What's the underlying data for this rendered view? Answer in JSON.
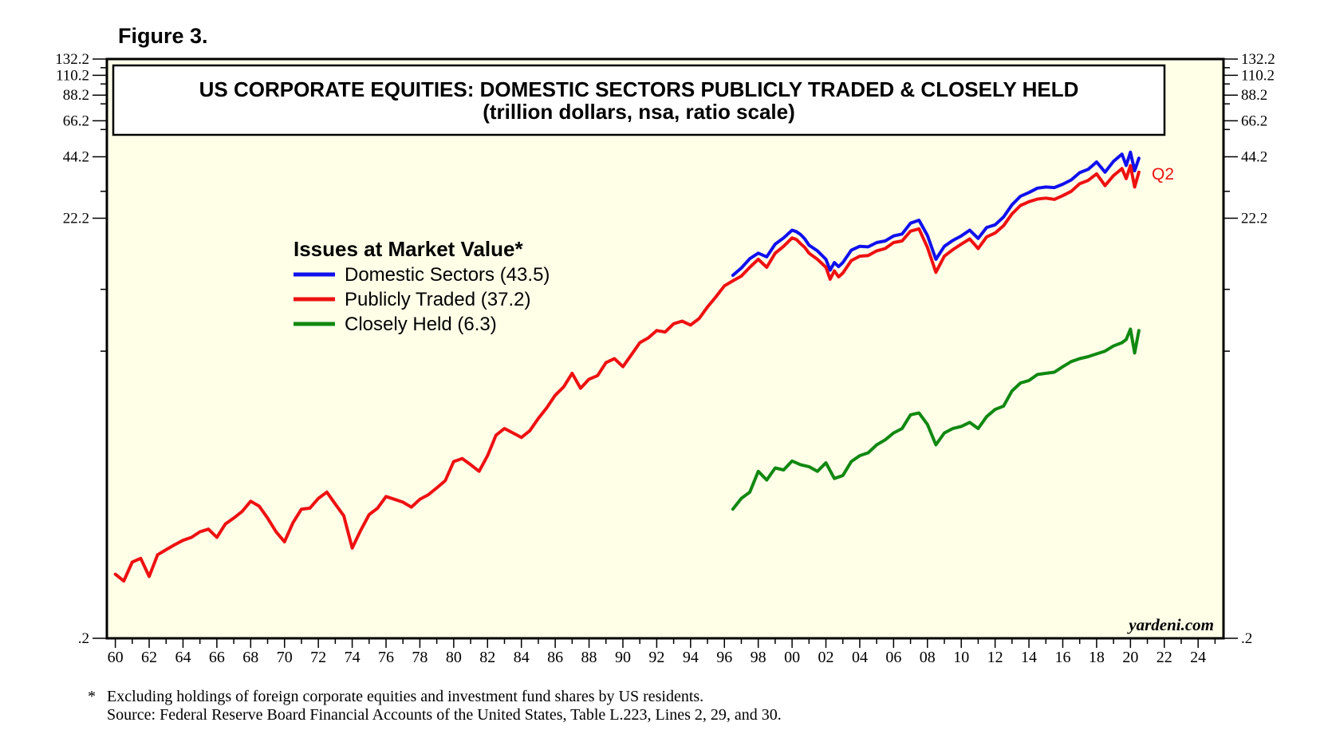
{
  "figure_label": "Figure 3.",
  "footnote": {
    "marker": "*",
    "line1": "Excluding holdings of foreign corporate equities and investment fund shares by US residents.",
    "line2": "Source: Federal Reserve Board Financial Accounts of the United States, Table L.223, Lines 2, 29, and 30."
  },
  "chart_data": {
    "type": "line",
    "title": "US CORPORATE EQUITIES: DOMESTIC SECTORS PUBLICLY TRADED & CLOSELY HELD",
    "subtitle": "(trillion dollars, nsa, ratio scale)",
    "y_scale": "log",
    "ylim": [
      0.2,
      132.2
    ],
    "y_ticks": [
      ".2",
      "22.2",
      "44.2",
      "66.2",
      "88.2",
      "110.2",
      "132.2"
    ],
    "y_tick_values": [
      0.2,
      22.2,
      44.2,
      66.2,
      88.2,
      110.2,
      132.2
    ],
    "xlim": [
      1960,
      2025
    ],
    "x_tick_labels": [
      "60",
      "62",
      "64",
      "66",
      "68",
      "70",
      "72",
      "74",
      "76",
      "78",
      "80",
      "82",
      "84",
      "86",
      "88",
      "90",
      "92",
      "94",
      "96",
      "98",
      "00",
      "02",
      "04",
      "06",
      "08",
      "10",
      "12",
      "14",
      "16",
      "18",
      "20",
      "22",
      "24"
    ],
    "grid": false,
    "background": "#ffffe8",
    "legend": {
      "title": "Issues at Market Value*",
      "placement": "upper-left"
    },
    "end_label": "Q2",
    "source": "yardeni.com",
    "series": [
      {
        "name": "Domestic Sectors (43.5)",
        "color": "#1010ee",
        "x": [
          1996.5,
          1997,
          1997.5,
          1998,
          1998.5,
          1999,
          1999.5,
          2000,
          2000.25,
          2000.5,
          2000.75,
          2001,
          2001.5,
          2002,
          2002.25,
          2002.5,
          2002.75,
          2003,
          2003.5,
          2004,
          2004.5,
          2005,
          2005.5,
          2006,
          2006.5,
          2007,
          2007.5,
          2008,
          2008.5,
          2009,
          2009.5,
          2010,
          2010.5,
          2011,
          2011.5,
          2012,
          2012.5,
          2013,
          2013.5,
          2014,
          2014.5,
          2015,
          2015.5,
          2016,
          2016.5,
          2017,
          2017.5,
          2018,
          2018.5,
          2019,
          2019.5,
          2019.75,
          2020,
          2020.25,
          2020.5
        ],
        "values": [
          11.7,
          12.7,
          14.1,
          15.0,
          14.4,
          16.6,
          17.8,
          19.4,
          19.1,
          18.5,
          17.6,
          16.4,
          15.4,
          14.0,
          12.4,
          13.5,
          12.9,
          13.5,
          15.5,
          16.2,
          16.1,
          16.9,
          17.2,
          18.2,
          18.6,
          21.0,
          21.7,
          18.3,
          14.0,
          16.2,
          17.3,
          18.2,
          19.4,
          17.7,
          20.0,
          20.6,
          22.5,
          25.8,
          28.4,
          29.6,
          31.1,
          31.5,
          31.3,
          32.5,
          34.1,
          37.0,
          38.4,
          41.7,
          37.2,
          42.0,
          45.5,
          40.1,
          46.5,
          37.8,
          43.5
        ]
      },
      {
        "name": "Publicly Traded (37.2)",
        "color": "#ee1111",
        "x": [
          1960,
          1960.5,
          1961,
          1961.5,
          1962,
          1962.5,
          1963,
          1963.5,
          1964,
          1964.5,
          1965,
          1965.5,
          1966,
          1966.5,
          1967,
          1967.5,
          1968,
          1968.5,
          1969,
          1969.5,
          1970,
          1970.5,
          1971,
          1971.5,
          1972,
          1972.5,
          1973,
          1973.5,
          1974,
          1974.5,
          1975,
          1975.5,
          1976,
          1976.5,
          1977,
          1977.5,
          1978,
          1978.5,
          1979,
          1979.5,
          1980,
          1980.5,
          1981,
          1981.5,
          1982,
          1982.5,
          1983,
          1983.5,
          1984,
          1984.5,
          1985,
          1985.5,
          1986,
          1986.5,
          1987,
          1987.5,
          1988,
          1988.5,
          1989,
          1989.5,
          1990,
          1990.5,
          1991,
          1991.5,
          1992,
          1992.5,
          1993,
          1993.5,
          1994,
          1994.5,
          1995,
          1995.5,
          1996,
          1996.5,
          1997,
          1997.5,
          1998,
          1998.5,
          1999,
          1999.5,
          2000,
          2000.25,
          2000.5,
          2000.75,
          2001,
          2001.5,
          2002,
          2002.25,
          2002.5,
          2002.75,
          2003,
          2003.5,
          2004,
          2004.5,
          2005,
          2005.5,
          2006,
          2006.5,
          2007,
          2007.5,
          2008,
          2008.5,
          2009,
          2009.5,
          2010,
          2010.5,
          2011,
          2011.5,
          2012,
          2012.5,
          2013,
          2013.5,
          2014,
          2014.5,
          2015,
          2015.5,
          2016,
          2016.5,
          2017,
          2017.5,
          2018,
          2018.5,
          2019,
          2019.5,
          2019.75,
          2020,
          2020.25,
          2020.5
        ],
        "values": [
          0.41,
          0.38,
          0.47,
          0.49,
          0.4,
          0.51,
          0.54,
          0.57,
          0.6,
          0.62,
          0.66,
          0.68,
          0.62,
          0.72,
          0.77,
          0.83,
          0.93,
          0.88,
          0.77,
          0.66,
          0.59,
          0.73,
          0.85,
          0.86,
          0.96,
          1.03,
          0.9,
          0.79,
          0.55,
          0.67,
          0.8,
          0.86,
          0.98,
          0.95,
          0.92,
          0.87,
          0.95,
          1.0,
          1.08,
          1.17,
          1.45,
          1.5,
          1.4,
          1.3,
          1.55,
          1.95,
          2.1,
          2.0,
          1.9,
          2.05,
          2.35,
          2.65,
          3.05,
          3.35,
          3.9,
          3.3,
          3.65,
          3.8,
          4.4,
          4.6,
          4.2,
          4.8,
          5.5,
          5.8,
          6.3,
          6.2,
          6.8,
          7.0,
          6.7,
          7.2,
          8.2,
          9.2,
          10.4,
          11.0,
          11.6,
          12.8,
          14.0,
          12.8,
          15.0,
          16.2,
          17.8,
          17.5,
          16.7,
          16.0,
          15.0,
          14.0,
          12.8,
          11.2,
          12.3,
          11.5,
          12.0,
          13.8,
          14.5,
          14.6,
          15.4,
          15.8,
          16.9,
          17.2,
          19.2,
          19.7,
          16.0,
          12.1,
          14.5,
          15.6,
          16.6,
          17.6,
          15.8,
          18.0,
          18.8,
          20.4,
          23.3,
          25.6,
          26.7,
          27.5,
          27.8,
          27.4,
          28.6,
          30.0,
          32.7,
          33.9,
          36.5,
          32.0,
          35.8,
          38.7,
          34.6,
          40.0,
          31.5,
          37.2
        ]
      },
      {
        "name": "Closely Held (6.3)",
        "color": "#118811",
        "x": [
          1996.5,
          1997,
          1997.5,
          1998,
          1998.5,
          1999,
          1999.5,
          2000,
          2000.5,
          2001,
          2001.5,
          2002,
          2002.5,
          2003,
          2003.5,
          2004,
          2004.5,
          2005,
          2005.5,
          2006,
          2006.5,
          2007,
          2007.5,
          2008,
          2008.5,
          2009,
          2009.5,
          2010,
          2010.5,
          2011,
          2011.5,
          2012,
          2012.5,
          2013,
          2013.5,
          2014,
          2014.5,
          2015,
          2015.5,
          2016,
          2016.5,
          2017,
          2017.5,
          2018,
          2018.5,
          2019,
          2019.5,
          2019.75,
          2020,
          2020.25,
          2020.5
        ],
        "values": [
          0.85,
          0.96,
          1.03,
          1.3,
          1.18,
          1.35,
          1.32,
          1.46,
          1.4,
          1.37,
          1.3,
          1.43,
          1.2,
          1.24,
          1.45,
          1.55,
          1.6,
          1.75,
          1.85,
          2.0,
          2.1,
          2.45,
          2.5,
          2.2,
          1.75,
          2.0,
          2.1,
          2.15,
          2.25,
          2.1,
          2.4,
          2.6,
          2.7,
          3.2,
          3.5,
          3.6,
          3.85,
          3.9,
          3.95,
          4.2,
          4.45,
          4.6,
          4.7,
          4.85,
          5.0,
          5.3,
          5.5,
          5.7,
          6.4,
          4.9,
          6.3
        ]
      }
    ]
  }
}
